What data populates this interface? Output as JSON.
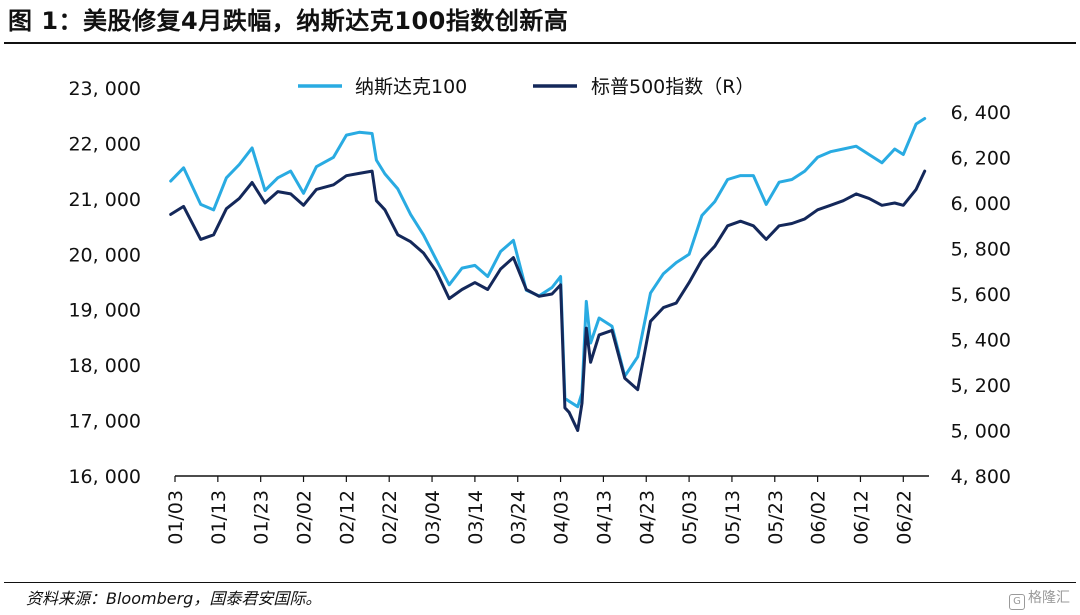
{
  "header": {
    "title": "图 1：美股修复4月跌幅，纳斯达克100指数创新高"
  },
  "footer": {
    "source": "资料来源：Bloomberg，国泰君安国际。",
    "watermark": "格隆汇",
    "watermark_icon": "G"
  },
  "colors": {
    "nasdaq": "#29abe2",
    "sp500": "#14285a",
    "axis": "#111111"
  },
  "chart_data": {
    "type": "line",
    "x_tick_labels": [
      "01/03",
      "01/13",
      "01/23",
      "02/02",
      "02/12",
      "02/22",
      "03/04",
      "03/14",
      "03/24",
      "04/03",
      "04/13",
      "04/23",
      "05/03",
      "05/13",
      "05/23",
      "06/02",
      "06/12",
      "06/22"
    ],
    "y_left": {
      "ylim": [
        16000,
        23000
      ],
      "ticks": [
        16000,
        17000,
        18000,
        19000,
        20000,
        21000,
        22000,
        23000
      ],
      "tick_labels": [
        "16, 000",
        "17, 000",
        "18, 000",
        "19, 000",
        "20, 000",
        "21, 000",
        "22, 000",
        "23, 000"
      ]
    },
    "y_right": {
      "ylim": [
        4800,
        6400
      ],
      "ticks": [
        4800,
        5000,
        5200,
        5400,
        5600,
        5800,
        6000,
        6200,
        6400
      ],
      "tick_labels": [
        "4, 800",
        "5, 000",
        "5, 200",
        "5, 400",
        "5, 600",
        "5, 800",
        "6, 000",
        "6, 200",
        "6, 400"
      ]
    },
    "legend_position": "top-center",
    "series": [
      {
        "name": "纳斯达克100",
        "axis": "left",
        "x": [
          "01/02",
          "01/05",
          "01/09",
          "01/12",
          "01/15",
          "01/18",
          "01/21",
          "01/24",
          "01/27",
          "01/30",
          "02/02",
          "02/05",
          "02/09",
          "02/12",
          "02/15",
          "02/18",
          "02/19",
          "02/21",
          "02/24",
          "02/27",
          "03/02",
          "03/05",
          "03/08",
          "03/11",
          "03/14",
          "03/17",
          "03/20",
          "03/23",
          "03/26",
          "03/29",
          "04/01",
          "04/03",
          "04/04",
          "04/05",
          "04/07",
          "04/08",
          "04/09",
          "04/10",
          "04/12",
          "04/15",
          "04/18",
          "04/21",
          "04/24",
          "04/27",
          "04/30",
          "05/03",
          "05/06",
          "05/09",
          "05/12",
          "05/15",
          "05/18",
          "05/21",
          "05/24",
          "05/27",
          "05/30",
          "06/02",
          "06/05",
          "06/08",
          "06/11",
          "06/14",
          "06/17",
          "06/20",
          "06/22",
          "06/25",
          "06/27"
        ],
        "y": [
          21320,
          21560,
          20900,
          20800,
          21380,
          21620,
          21920,
          21150,
          21380,
          21500,
          21100,
          21580,
          21750,
          22150,
          22200,
          22180,
          21700,
          21450,
          21180,
          20720,
          20350,
          19900,
          19450,
          19750,
          19800,
          19600,
          20050,
          20250,
          19350,
          19250,
          19400,
          19600,
          17400,
          17350,
          17250,
          17500,
          19150,
          18400,
          18850,
          18700,
          17800,
          18150,
          19300,
          19650,
          19850,
          20000,
          20700,
          20950,
          21350,
          21420,
          21420,
          20900,
          21300,
          21350,
          21500,
          21750,
          21850,
          21900,
          21950,
          21800,
          21650,
          21900,
          21800,
          22350,
          22450
        ]
      },
      {
        "name": "标普500指数（R）",
        "axis": "right",
        "x": [
          "01/02",
          "01/05",
          "01/09",
          "01/12",
          "01/15",
          "01/18",
          "01/21",
          "01/24",
          "01/27",
          "01/30",
          "02/02",
          "02/05",
          "02/09",
          "02/12",
          "02/15",
          "02/18",
          "02/19",
          "02/21",
          "02/24",
          "02/27",
          "03/02",
          "03/05",
          "03/08",
          "03/11",
          "03/14",
          "03/17",
          "03/20",
          "03/23",
          "03/26",
          "03/29",
          "04/01",
          "04/03",
          "04/04",
          "04/05",
          "04/07",
          "04/08",
          "04/09",
          "04/10",
          "04/12",
          "04/15",
          "04/18",
          "04/21",
          "04/24",
          "04/27",
          "04/30",
          "05/03",
          "05/06",
          "05/09",
          "05/12",
          "05/15",
          "05/18",
          "05/21",
          "05/24",
          "05/27",
          "05/30",
          "06/02",
          "06/05",
          "06/08",
          "06/11",
          "06/14",
          "06/17",
          "06/20",
          "06/22",
          "06/25",
          "06/27"
        ],
        "y": [
          5950,
          5985,
          5840,
          5860,
          5975,
          6020,
          6090,
          6000,
          6050,
          6040,
          5990,
          6060,
          6080,
          6120,
          6130,
          6140,
          6010,
          5970,
          5860,
          5830,
          5780,
          5700,
          5580,
          5620,
          5650,
          5620,
          5710,
          5760,
          5620,
          5590,
          5600,
          5640,
          5100,
          5080,
          5000,
          5120,
          5450,
          5300,
          5420,
          5440,
          5230,
          5180,
          5480,
          5540,
          5560,
          5650,
          5750,
          5810,
          5900,
          5920,
          5900,
          5840,
          5900,
          5910,
          5930,
          5970,
          5990,
          6010,
          6040,
          6020,
          5990,
          6000,
          5990,
          6060,
          6140
        ]
      }
    ]
  }
}
